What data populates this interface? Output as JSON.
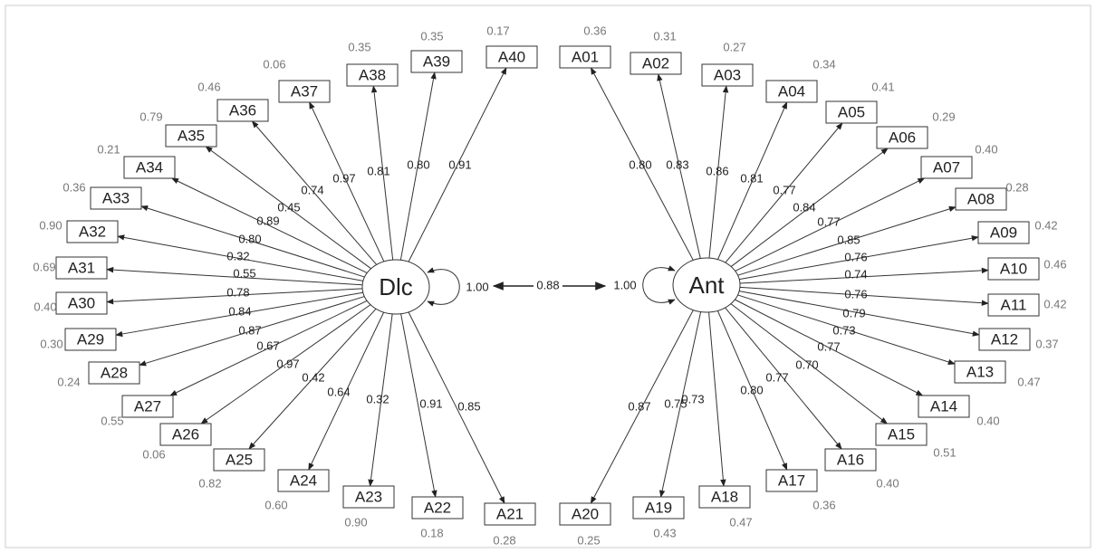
{
  "factors": [
    {
      "label": "Dlc",
      "variance": "1.00",
      "indicators": [
        {
          "label": "A21",
          "loading": "0.85",
          "residual": "0.28"
        },
        {
          "label": "A22",
          "loading": "0.91",
          "residual": "0.18"
        },
        {
          "label": "A23",
          "loading": "0.32",
          "residual": "0.90"
        },
        {
          "label": "A24",
          "loading": "0.64",
          "residual": "0.60"
        },
        {
          "label": "A25",
          "loading": "0.42",
          "residual": "0.82"
        },
        {
          "label": "A26",
          "loading": "0.97",
          "residual": "0.06"
        },
        {
          "label": "A27",
          "loading": "0.67",
          "residual": "0.55"
        },
        {
          "label": "A28",
          "loading": "0.87",
          "residual": "0.24"
        },
        {
          "label": "A29",
          "loading": "0.84",
          "residual": "0.30"
        },
        {
          "label": "A30",
          "loading": "0.78",
          "residual": "0.40"
        },
        {
          "label": "A31",
          "loading": "0.55",
          "residual": "0.69"
        },
        {
          "label": "A32",
          "loading": "0.32",
          "residual": "0.90"
        },
        {
          "label": "A33",
          "loading": "0.80",
          "residual": "0.36"
        },
        {
          "label": "A34",
          "loading": "0.89",
          "residual": "0.21"
        },
        {
          "label": "A35",
          "loading": "0.45",
          "residual": "0.79"
        },
        {
          "label": "A36",
          "loading": "0.74",
          "residual": "0.46"
        },
        {
          "label": "A37",
          "loading": "0.97",
          "residual": "0.06"
        },
        {
          "label": "A38",
          "loading": "0.81",
          "residual": "0.35"
        },
        {
          "label": "A39",
          "loading": "0.80",
          "residual": "0.35"
        },
        {
          "label": "A40",
          "loading": "0.91",
          "residual": "0.17"
        }
      ]
    },
    {
      "label": "Ant",
      "variance": "1.00",
      "indicators": [
        {
          "label": "A01",
          "loading": "0.80",
          "residual": "0.36"
        },
        {
          "label": "A02",
          "loading": "0.83",
          "residual": "0.31"
        },
        {
          "label": "A03",
          "loading": "0.86",
          "residual": "0.27"
        },
        {
          "label": "A04",
          "loading": "0.81",
          "residual": "0.34"
        },
        {
          "label": "A05",
          "loading": "0.77",
          "residual": "0.41"
        },
        {
          "label": "A06",
          "loading": "0.84",
          "residual": "0.29"
        },
        {
          "label": "A07",
          "loading": "0.77",
          "residual": "0.40"
        },
        {
          "label": "A08",
          "loading": "0.85",
          "residual": "0.28"
        },
        {
          "label": "A09",
          "loading": "0.76",
          "residual": "0.42"
        },
        {
          "label": "A10",
          "loading": "0.74",
          "residual": "0.46"
        },
        {
          "label": "A11",
          "loading": "0.76",
          "residual": "0.42"
        },
        {
          "label": "A12",
          "loading": "0.79",
          "residual": "0.37"
        },
        {
          "label": "A13",
          "loading": "0.73",
          "residual": "0.47"
        },
        {
          "label": "A14",
          "loading": "0.77",
          "residual": "0.40"
        },
        {
          "label": "A15",
          "loading": "0.70",
          "residual": "0.51"
        },
        {
          "label": "A16",
          "loading": "0.77",
          "residual": "0.40"
        },
        {
          "label": "A17",
          "loading": "0.80",
          "residual": "0.36"
        },
        {
          "label": "A18",
          "loading": "0.73",
          "residual": "0.47"
        },
        {
          "label": "A19",
          "loading": "0.75",
          "residual": "0.43"
        },
        {
          "label": "A20",
          "loading": "0.87",
          "residual": "0.25"
        }
      ]
    }
  ],
  "correlation": "0.88"
}
